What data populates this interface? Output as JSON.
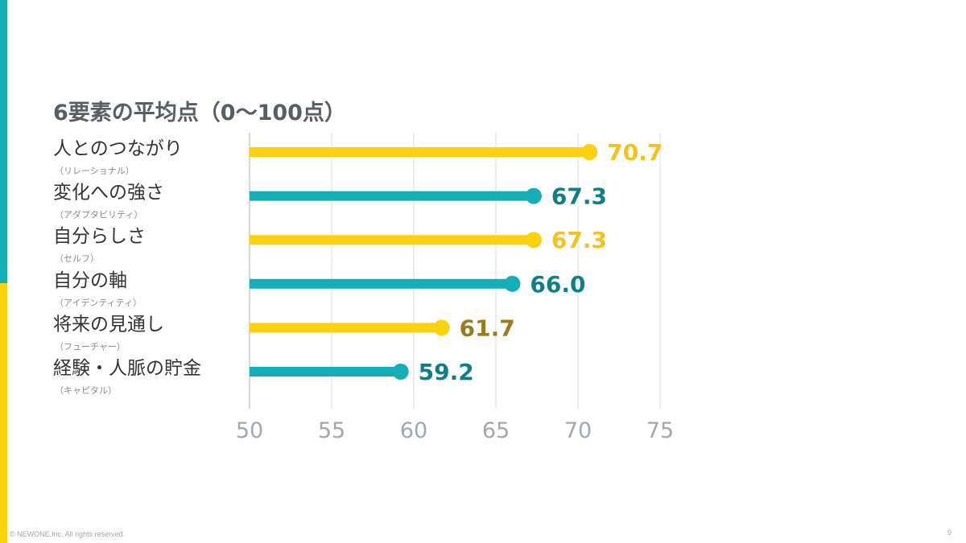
{
  "colors": {
    "accent_top": "#14adb8",
    "accent_bottom": "#fcd20f",
    "series_a": "#fcd20f",
    "series_b": "#14adb8",
    "label_a": "#f2c41b",
    "label_b": "#0f7f86",
    "label_gold": "#9a7b1e"
  },
  "footer": {
    "copyright": "© NEWONE,Inc.  All rights reserved.",
    "page_number": "9"
  },
  "chart_data": {
    "type": "bar",
    "title": "6要素の平均点（0〜100点）",
    "orientation": "horizontal",
    "style": "lollipop",
    "xlim": [
      50,
      75
    ],
    "xticks": [
      50,
      55,
      60,
      65,
      70,
      75
    ],
    "grid": true,
    "categories": [
      {
        "name": "人とのつながり",
        "sub": "（リレーショナル）"
      },
      {
        "name": "変化への強さ",
        "sub": "（アダプタビリティ）"
      },
      {
        "name": "自分らしさ",
        "sub": "（セルフ）"
      },
      {
        "name": "自分の軸",
        "sub": "（アイデンティティ）"
      },
      {
        "name": "将来の見通し",
        "sub": "（フューチャー）"
      },
      {
        "name": "経験・人脈の貯金",
        "sub": "（キャピタル）"
      }
    ],
    "values": [
      70.7,
      67.3,
      67.3,
      66.0,
      61.7,
      59.2
    ],
    "value_labels": [
      "70.7",
      "67.3",
      "67.3",
      "66.0",
      "61.7",
      "59.2"
    ],
    "bar_colors": [
      "yellow",
      "teal",
      "yellow",
      "teal",
      "yellow",
      "teal"
    ],
    "label_colors": [
      "yellow",
      "teal",
      "yellow",
      "teal",
      "gold",
      "teal"
    ]
  }
}
